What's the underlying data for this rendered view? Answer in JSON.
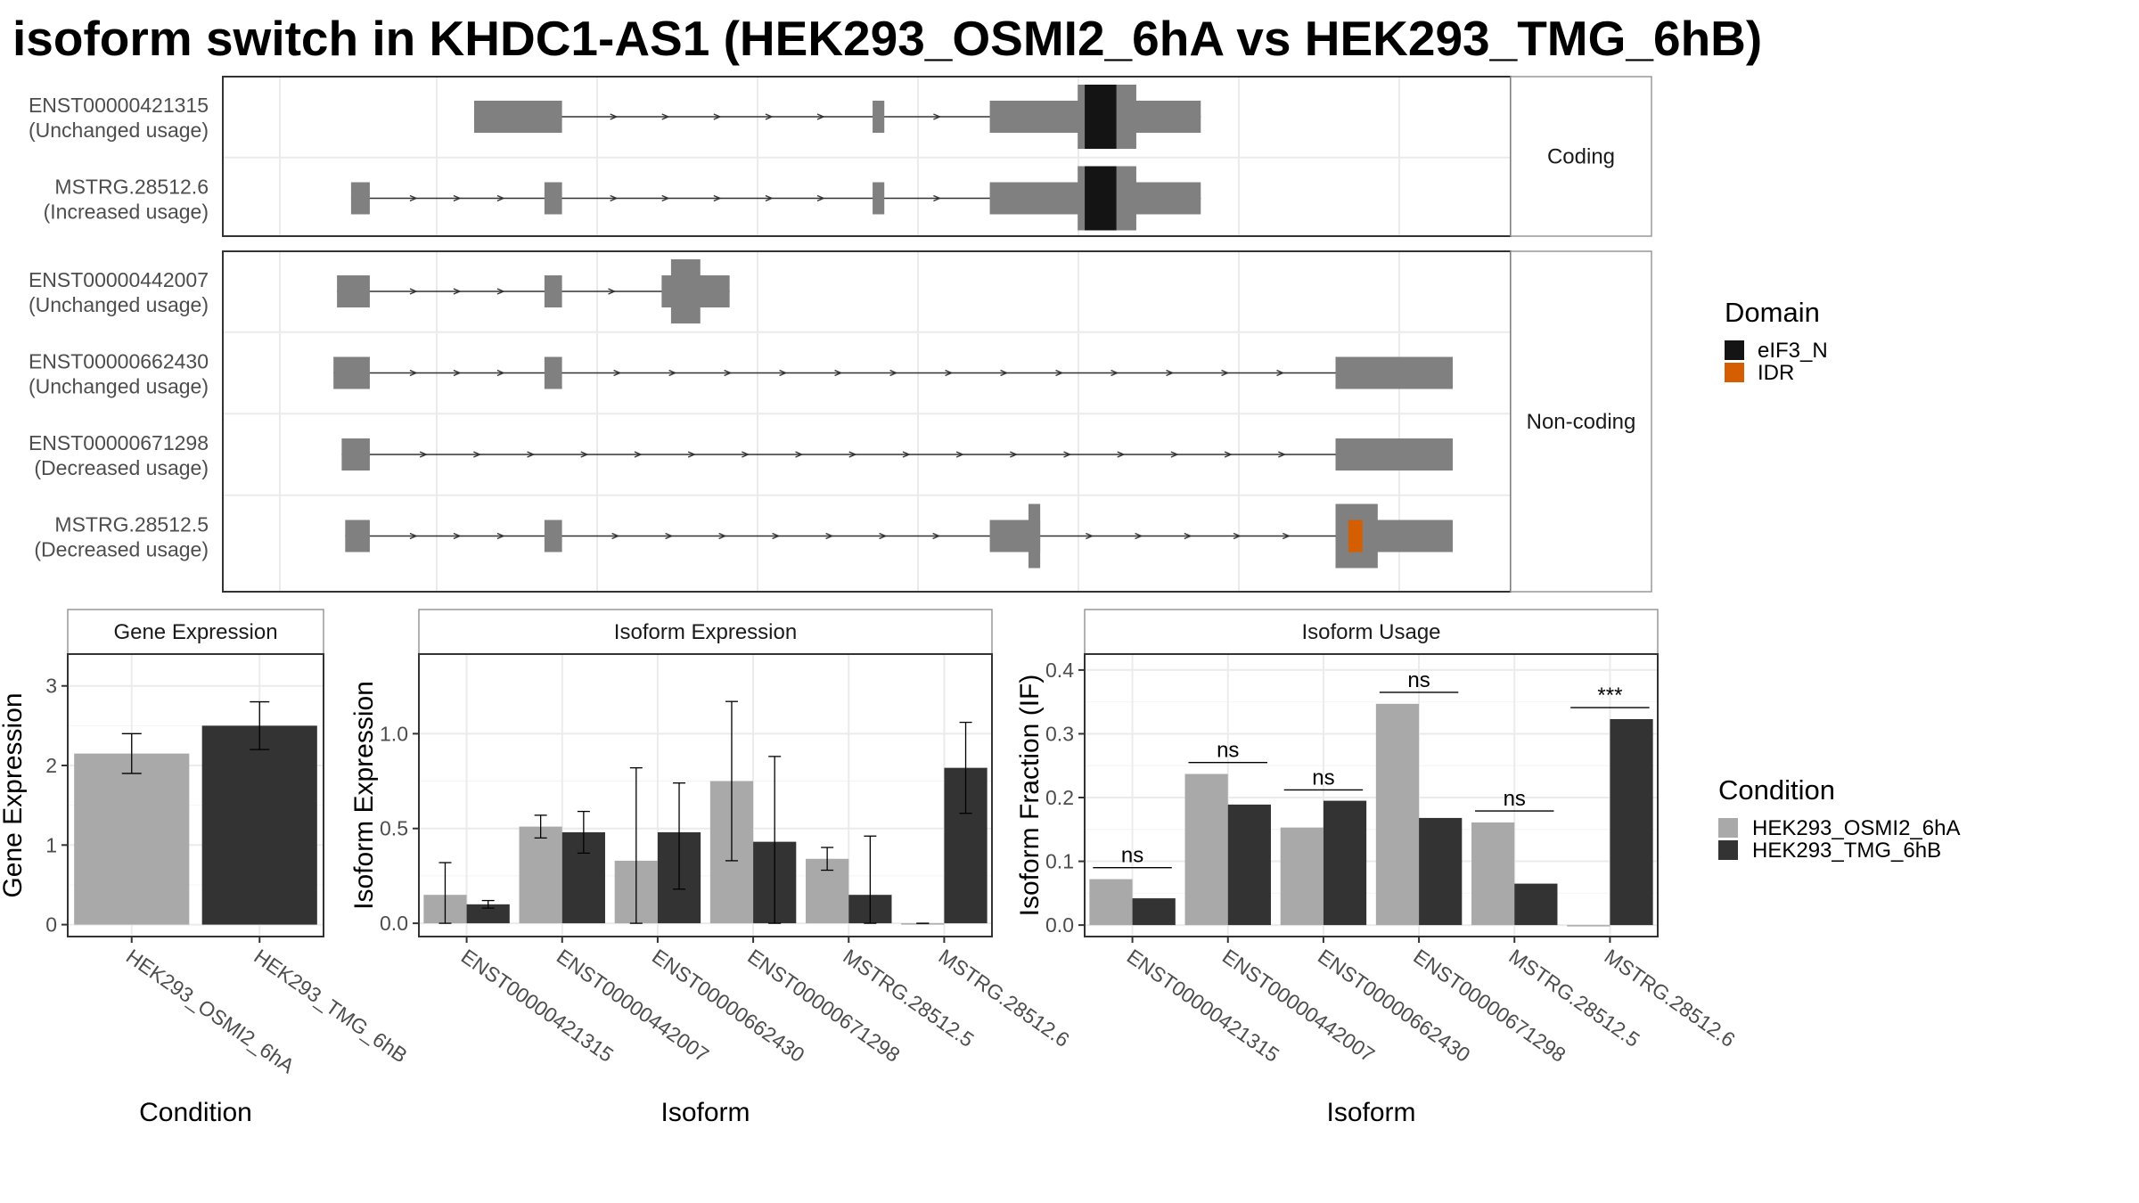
{
  "title": "isoform switch in KHDC1-AS1 (HEK293_OSMI2_6hA vs HEK293_TMG_6hB)",
  "colors": {
    "exon": "#808080",
    "intron": "#333333",
    "domain_eIF3_N": "#141414",
    "domain_IDR": "#d55e00",
    "condition_A": "#a9a9a9",
    "condition_B": "#333333",
    "grid": "#ebebeb",
    "strip_bg": "#ffffff",
    "panel_border": "#333333"
  },
  "legends": {
    "domain": {
      "title": "Domain",
      "items": [
        {
          "label": "eIF3_N",
          "color": "#141414"
        },
        {
          "label": "IDR",
          "color": "#d55e00"
        }
      ]
    },
    "condition": {
      "title": "Condition",
      "items": [
        {
          "label": "HEK293_OSMI2_6hA",
          "color": "#a9a9a9"
        },
        {
          "label": "HEK293_TMG_6hB",
          "color": "#333333"
        }
      ]
    }
  },
  "chart_data": [
    {
      "type": "gene-structure",
      "x_domain": [
        0,
        100
      ],
      "groups": [
        {
          "label": "Coding",
          "transcripts": [
            {
              "name": "ENST00000421315",
              "usage": "(Unchanged usage)",
              "start": 16.5,
              "end": 78.5,
              "exons": [
                [
                  16.5,
                  24,
                  "thin"
                ],
                [
                  50.5,
                  51.5,
                  "thin"
                ],
                [
                  60.5,
                  78.5,
                  "cds",
                  68,
                  73
                ]
              ],
              "domains": [
                {
                  "name": "eIF3_N",
                  "start": 68.6,
                  "end": 71.3
                }
              ]
            },
            {
              "name": "MSTRG.28512.6",
              "usage": "(Increased usage)",
              "start": 6,
              "end": 78.5,
              "exons": [
                [
                  6,
                  7.6,
                  "thin"
                ],
                [
                  22.5,
                  24,
                  "thin"
                ],
                [
                  50.5,
                  51.5,
                  "thin"
                ],
                [
                  60.5,
                  78.5,
                  "cds",
                  68,
                  73
                ]
              ],
              "domains": [
                {
                  "name": "eIF3_N",
                  "start": 68.6,
                  "end": 71.3
                }
              ]
            }
          ]
        },
        {
          "label": "Non-coding",
          "transcripts": [
            {
              "name": "ENST00000442007",
              "usage": "(Unchanged usage)",
              "start": 4.8,
              "end": 38.3,
              "exons": [
                [
                  4.8,
                  7.6,
                  "thin"
                ],
                [
                  22.5,
                  24,
                  "thin"
                ],
                [
                  32.5,
                  38.3,
                  "cds",
                  33.3,
                  35.8
                ]
              ],
              "domains": []
            },
            {
              "name": "ENST00000662430",
              "usage": "(Unchanged usage)",
              "start": 4.5,
              "end": 100,
              "exons": [
                [
                  4.5,
                  7.6,
                  "thin"
                ],
                [
                  22.5,
                  24,
                  "thin"
                ],
                [
                  90,
                  100,
                  "thin"
                ]
              ],
              "domains": []
            },
            {
              "name": "ENST00000671298",
              "usage": "(Decreased usage)",
              "start": 5.2,
              "end": 100,
              "exons": [
                [
                  5.2,
                  7.6,
                  "thin"
                ],
                [
                  90,
                  100,
                  "thin"
                ]
              ],
              "domains": []
            },
            {
              "name": "MSTRG.28512.5",
              "usage": "(Decreased usage)",
              "start": 5.5,
              "end": 100,
              "exons": [
                [
                  5.5,
                  7.6,
                  "thin"
                ],
                [
                  22.5,
                  24,
                  "thin"
                ],
                [
                  60.5,
                  64.8,
                  "cds",
                  63.8,
                  64.8
                ],
                [
                  90,
                  100,
                  "cds",
                  90,
                  93.6
                ]
              ],
              "domains": [
                {
                  "name": "IDR",
                  "start": 91.1,
                  "end": 92.3
                }
              ]
            }
          ]
        }
      ]
    },
    {
      "type": "bar",
      "title": "Gene Expression",
      "xlabel": "Condition",
      "ylabel": "Gene Expression",
      "ylim": [
        -0.15,
        3.4
      ],
      "yticks": [
        0,
        1,
        2,
        3
      ],
      "categories": [
        "HEK293_OSMI2_6hA",
        "HEK293_TMG_6hB"
      ],
      "values": [
        2.15,
        2.5
      ],
      "error": [
        [
          1.9,
          2.4
        ],
        [
          2.2,
          2.8
        ]
      ]
    },
    {
      "type": "bar",
      "title": "Isoform Expression",
      "xlabel": "Isoform",
      "ylabel": "Isoform Expression",
      "ylim": [
        -0.07,
        1.42
      ],
      "yticks": [
        0.0,
        0.5,
        1.0
      ],
      "ytick_labels": [
        "0.0",
        "0.5",
        "1.0"
      ],
      "categories": [
        "ENST00000421315",
        "ENST00000442007",
        "ENST00000662430",
        "ENST00000671298",
        "MSTRG.28512.5",
        "MSTRG.28512.6"
      ],
      "series": [
        {
          "name": "HEK293_OSMI2_6hA",
          "values": [
            0.15,
            0.51,
            0.33,
            0.75,
            0.34,
            0.0
          ],
          "error": [
            [
              0.0,
              0.32
            ],
            [
              0.45,
              0.57
            ],
            [
              0.0,
              0.82
            ],
            [
              0.33,
              1.17
            ],
            [
              0.28,
              0.4
            ],
            [
              0.0,
              0.0
            ]
          ]
        },
        {
          "name": "HEK293_TMG_6hB",
          "values": [
            0.1,
            0.48,
            0.48,
            0.43,
            0.15,
            0.82
          ],
          "error": [
            [
              0.08,
              0.12
            ],
            [
              0.37,
              0.59
            ],
            [
              0.18,
              0.74
            ],
            [
              0.0,
              0.88
            ],
            [
              0.0,
              0.46
            ],
            [
              0.58,
              1.06
            ]
          ]
        }
      ]
    },
    {
      "type": "bar",
      "title": "Isoform Usage",
      "xlabel": "Isoform",
      "ylabel": "Isoform Fraction (IF)",
      "ylim": [
        -0.018,
        0.425
      ],
      "yticks": [
        0.0,
        0.1,
        0.2,
        0.3,
        0.4
      ],
      "ytick_labels": [
        "0.0",
        "0.1",
        "0.2",
        "0.3",
        "0.4"
      ],
      "categories": [
        "ENST00000421315",
        "ENST00000442007",
        "ENST00000662430",
        "ENST00000671298",
        "MSTRG.28512.5",
        "MSTRG.28512.6"
      ],
      "series": [
        {
          "name": "HEK293_OSMI2_6hA",
          "values": [
            0.072,
            0.237,
            0.153,
            0.347,
            0.161,
            0.0
          ]
        },
        {
          "name": "HEK293_TMG_6hB",
          "values": [
            0.042,
            0.189,
            0.195,
            0.168,
            0.065,
            0.323
          ]
        }
      ],
      "annotations": [
        {
          "label": "ns",
          "y": 0.09
        },
        {
          "label": "ns",
          "y": 0.255
        },
        {
          "label": "ns",
          "y": 0.212
        },
        {
          "label": "ns",
          "y": 0.365
        },
        {
          "label": "ns",
          "y": 0.179
        },
        {
          "label": "***",
          "y": 0.341
        }
      ]
    }
  ]
}
